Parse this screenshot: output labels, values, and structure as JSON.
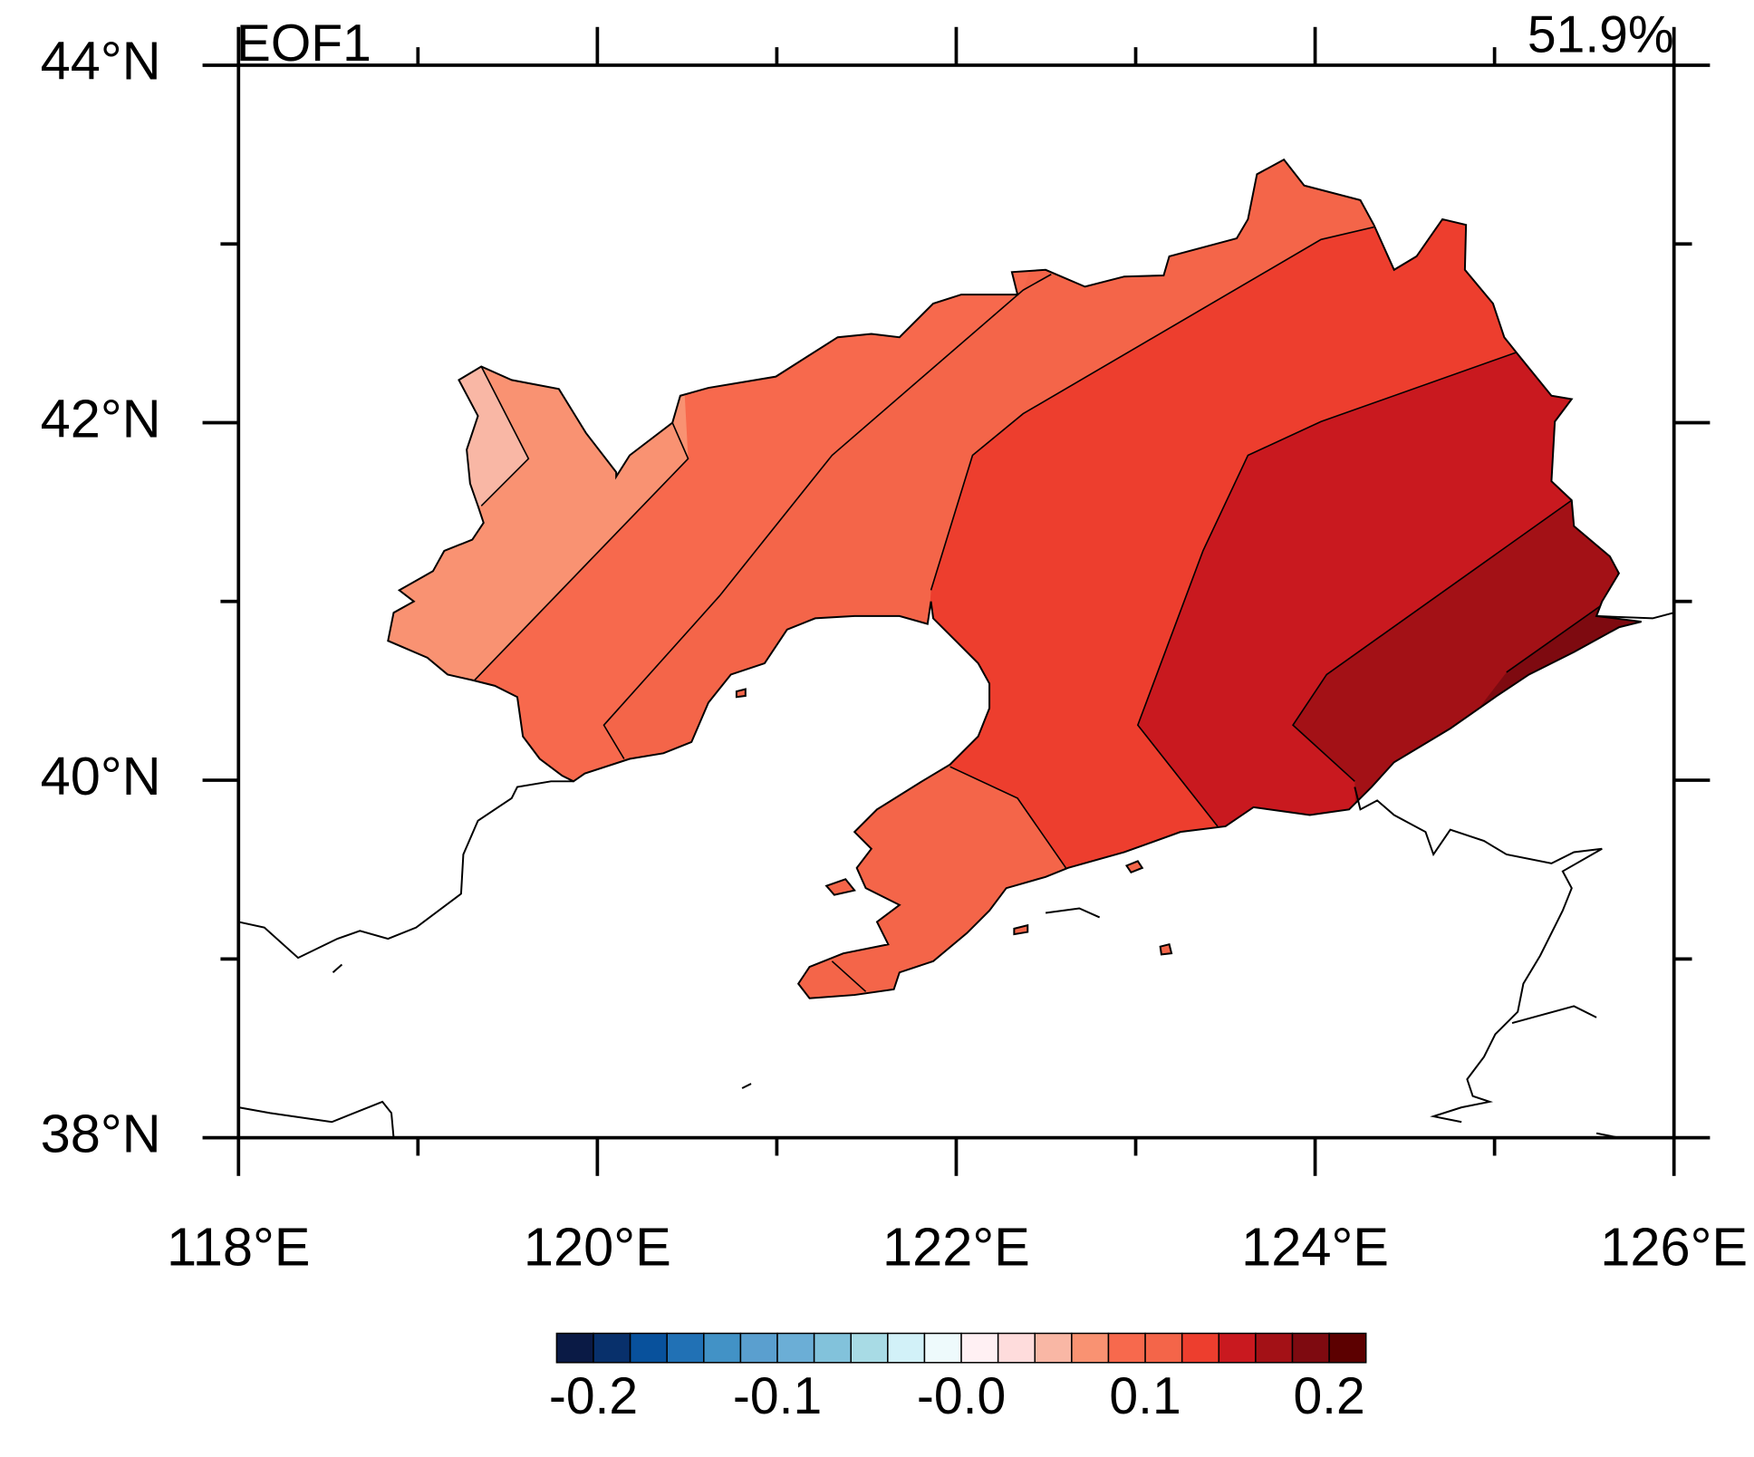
{
  "chart_data": {
    "type": "map",
    "title": "EOF1",
    "annotation": "51.9%",
    "xlim": [
      118,
      126
    ],
    "ylim": [
      38,
      44
    ],
    "xticks": [
      {
        "value": 118,
        "label": "118°E"
      },
      {
        "value": 120,
        "label": "120°E"
      },
      {
        "value": 122,
        "label": "122°E"
      },
      {
        "value": 124,
        "label": "124°E"
      },
      {
        "value": 126,
        "label": "126°E"
      }
    ],
    "yticks": [
      {
        "value": 38,
        "label": "38°N"
      },
      {
        "value": 40,
        "label": "40°N"
      },
      {
        "value": 42,
        "label": "42°N"
      },
      {
        "value": 44,
        "label": "44°N"
      }
    ],
    "xminorticks": [
      119,
      121,
      123,
      125
    ],
    "yminorticks": [
      39,
      41,
      43
    ],
    "colorbar": {
      "levels": [
        -0.2,
        -0.18,
        -0.16,
        -0.14,
        -0.12,
        -0.1,
        -0.08,
        -0.06,
        -0.04,
        -0.02,
        0,
        0.02,
        0.04,
        0.06,
        0.08,
        0.1,
        0.12,
        0.14,
        0.16,
        0.18,
        0.2
      ],
      "colors": [
        "#0a1a45",
        "#08306b",
        "#08519c",
        "#2171b5",
        "#4292c6",
        "#5a9fcf",
        "#6baed6",
        "#82c2db",
        "#a8dbe5",
        "#d2f1f8",
        "#eefafc",
        "#fff0f3",
        "#fedcdc",
        "#f9b7a5",
        "#f99272",
        "#f7694d",
        "#f46549",
        "#ed3e2e",
        "#c9191f",
        "#a31116",
        "#7e0a10",
        "#5c0000"
      ],
      "ticks": [
        -0.2,
        -0.1,
        {
          "value": 0,
          "label": "-0.0"
        },
        0.1,
        0.2
      ]
    }
  }
}
